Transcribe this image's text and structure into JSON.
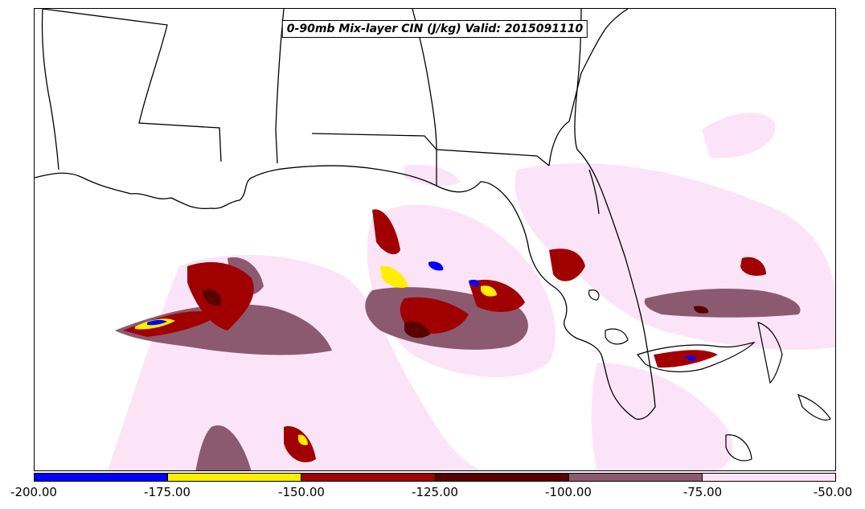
{
  "title": "0-90mb Mix-layer CIN (J/kg) Valid: 2015091110",
  "colorbar": {
    "colors": [
      "#0000ff",
      "#ffee00",
      "#a00000",
      "#5a0000",
      "#8b5a70",
      "#fce4f8"
    ],
    "ticks": [
      "-200.00",
      "-175.00",
      "-150.00",
      "-125.00",
      "-100.00",
      "-75.00",
      "-50.00"
    ]
  },
  "palette": {
    "blue": "#0000ff",
    "yellow": "#ffee00",
    "red": "#a00000",
    "darkred": "#5a0000",
    "mauve": "#8b5a70",
    "pink": "#fce4f8",
    "border": "#000000"
  }
}
